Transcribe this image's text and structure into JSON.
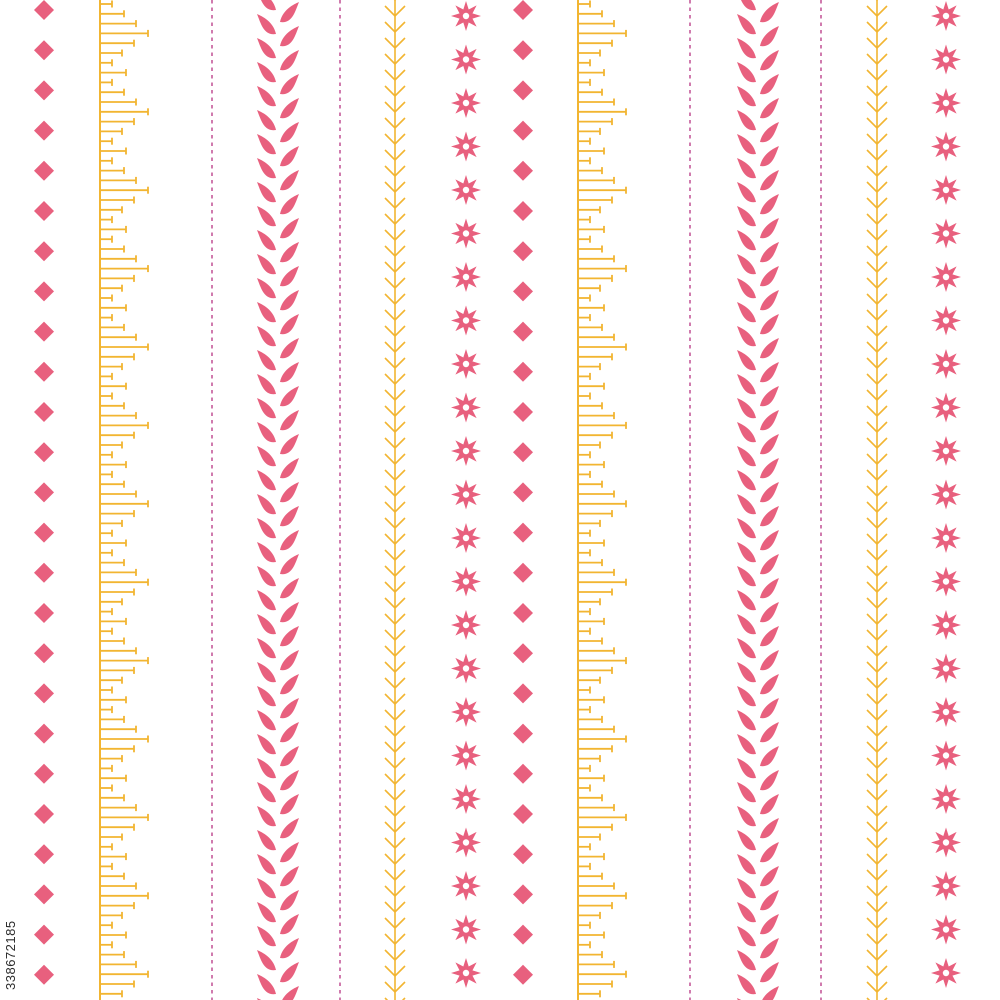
{
  "image": {
    "background": "#ffffff",
    "stock_id_text": "338672185"
  },
  "palette": {
    "pink": "#e8607e",
    "gold": "#f2b531",
    "magenta_dash": "#c45a9a"
  },
  "stripes": [
    {
      "motif": "diamond-row",
      "color": "pink"
    },
    {
      "motif": "ruler-ticks",
      "color": "gold"
    },
    {
      "motif": "dashed-line",
      "color": "magenta_dash"
    },
    {
      "motif": "leaf-vine",
      "color": "pink"
    },
    {
      "motif": "dashed-line",
      "color": "magenta_dash"
    },
    {
      "motif": "herringbone",
      "color": "gold"
    },
    {
      "motif": "star-flower-row",
      "color": "pink"
    },
    {
      "motif": "diamond-row",
      "color": "pink"
    },
    {
      "motif": "ruler-ticks",
      "color": "gold"
    },
    {
      "motif": "dashed-line",
      "color": "magenta_dash"
    },
    {
      "motif": "leaf-vine",
      "color": "pink"
    },
    {
      "motif": "dashed-line",
      "color": "magenta_dash"
    },
    {
      "motif": "herringbone",
      "color": "gold"
    },
    {
      "motif": "star-flower-row",
      "color": "pink"
    }
  ]
}
